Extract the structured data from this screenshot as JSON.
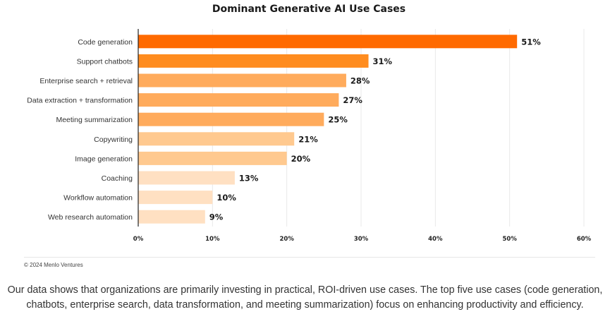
{
  "chart_data": {
    "type": "bar",
    "orientation": "horizontal",
    "title": "Dominant Generative AI Use Cases",
    "xlabel": "",
    "ylabel": "",
    "categories": [
      "Code generation",
      "Support chatbots",
      "Enterprise search + retrieval",
      "Data extraction + transformation",
      "Meeting summarization",
      "Copywriting",
      "Image generation",
      "Coaching",
      "Workflow automation",
      "Web research automation"
    ],
    "values": [
      51,
      31,
      28,
      27,
      25,
      21,
      20,
      13,
      10,
      9
    ],
    "value_labels": [
      "51%",
      "31%",
      "28%",
      "27%",
      "25%",
      "21%",
      "20%",
      "13%",
      "10%",
      "9%"
    ],
    "bar_colors": [
      "#ff6a00",
      "#ff8c1f",
      "#ffab5c",
      "#ffab5c",
      "#ffab5c",
      "#ffc98f",
      "#ffc98f",
      "#ffe0c2",
      "#ffe0c2",
      "#ffe0c2"
    ],
    "xlim": [
      0,
      60
    ],
    "xticks": [
      0,
      10,
      20,
      30,
      40,
      50,
      60
    ],
    "xtick_labels": [
      "0%",
      "10%",
      "20%",
      "30%",
      "40%",
      "50%",
      "60%"
    ],
    "grid": true,
    "legend": "none"
  },
  "credit": "© 2024 Menlo Ventures",
  "caption": "Our data shows that organizations are primarily investing in practical, ROI-driven use cases. The top five use cases (code generation, chatbots, enterprise search, data transformation, and meeting summarization) focus on enhancing productivity and efficiency."
}
